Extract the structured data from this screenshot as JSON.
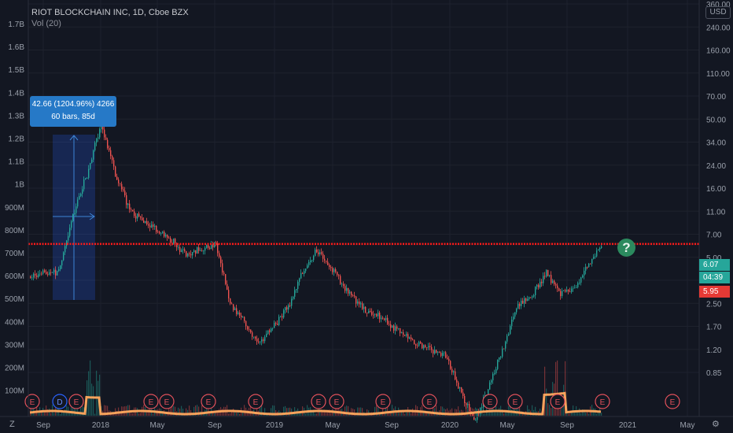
{
  "legend": {
    "title": "RIOT BLOCKCHAIN INC, 1D, Cboe BZX",
    "sub": "Vol (20)"
  },
  "currency": "USD",
  "tooltip": {
    "line1": "42.66 (1204.96%) 4266",
    "line2": "60 bars, 85d"
  },
  "question_mark": "?",
  "price_tags": [
    {
      "label": "6.07",
      "color": "#26a69a"
    },
    {
      "label": "04:39",
      "color": "#26a69a"
    },
    {
      "label": "5.95",
      "color": "#e53935"
    }
  ],
  "corners": {
    "left": "Z",
    "right": "⚙"
  },
  "colors": {
    "up": "#26a69a",
    "down": "#ef5350",
    "volume_ma": "#f7a35c",
    "resistance": "#ff1a1a"
  },
  "chart_data": {
    "type": "candlestick",
    "title": "RIOT BLOCKCHAIN INC, 1D, Cboe BZX",
    "yscale": "log",
    "right_axis_ticks": [
      "360.00",
      "240.00",
      "160.00",
      "110.00",
      "70.00",
      "50.00",
      "34.00",
      "24.00",
      "16.00",
      "11.00",
      "7.00",
      "5.00",
      "3.50",
      "2.50",
      "1.70",
      "1.20",
      "0.85"
    ],
    "left_axis_ticks": [
      "1.7B",
      "1.6B",
      "1.5B",
      "1.4B",
      "1.3B",
      "1.2B",
      "1.1B",
      "1B",
      "900M",
      "800M",
      "700M",
      "600M",
      "500M",
      "400M",
      "300M",
      "200M",
      "100M"
    ],
    "x_ticks": [
      "Sep",
      "2018",
      "May",
      "Sep",
      "2019",
      "May",
      "Sep",
      "2020",
      "May",
      "Sep",
      "2021",
      "May"
    ],
    "resistance_level": 6.07,
    "last_price": 6.07,
    "prev_close": 5.95,
    "countdown": "04:39",
    "measure": {
      "change": 42.66,
      "percent": 1204.96,
      "ticks": 4266,
      "bars": 60,
      "days": 85
    },
    "price_path": [
      {
        "date": "2017-08",
        "close": 3.7
      },
      {
        "date": "2017-10",
        "close": 4.0
      },
      {
        "date": "2017-11",
        "close": 10.0
      },
      {
        "date": "2017-12",
        "close": 20.0
      },
      {
        "date": "2018-01",
        "close": 46.0
      },
      {
        "date": "2018-02",
        "close": 20.0
      },
      {
        "date": "2018-03",
        "close": 11.0
      },
      {
        "date": "2018-05",
        "close": 7.5
      },
      {
        "date": "2018-07",
        "close": 5.2
      },
      {
        "date": "2018-09",
        "close": 6.0
      },
      {
        "date": "2018-10",
        "close": 2.5
      },
      {
        "date": "2018-12",
        "close": 1.3
      },
      {
        "date": "2019-02",
        "close": 2.3
      },
      {
        "date": "2019-03",
        "close": 4.0
      },
      {
        "date": "2019-04",
        "close": 5.5
      },
      {
        "date": "2019-05",
        "close": 4.2
      },
      {
        "date": "2019-07",
        "close": 2.4
      },
      {
        "date": "2019-09",
        "close": 1.8
      },
      {
        "date": "2019-11",
        "close": 1.3
      },
      {
        "date": "2020-01",
        "close": 1.1
      },
      {
        "date": "2020-03",
        "close": 0.4
      },
      {
        "date": "2020-05",
        "close": 1.2
      },
      {
        "date": "2020-06",
        "close": 2.5
      },
      {
        "date": "2020-07",
        "close": 2.8
      },
      {
        "date": "2020-08",
        "close": 3.9
      },
      {
        "date": "2020-09",
        "close": 2.8
      },
      {
        "date": "2020-10",
        "close": 3.2
      },
      {
        "date": "2020-11",
        "close": 4.5
      },
      {
        "date": "2020-12",
        "close": 6.07
      }
    ],
    "earnings_markers": [
      "E",
      "D",
      "E",
      "E",
      "E",
      "E",
      "E",
      "E",
      "E",
      "E",
      "E",
      "E",
      "E",
      "E",
      "E",
      "E"
    ]
  }
}
